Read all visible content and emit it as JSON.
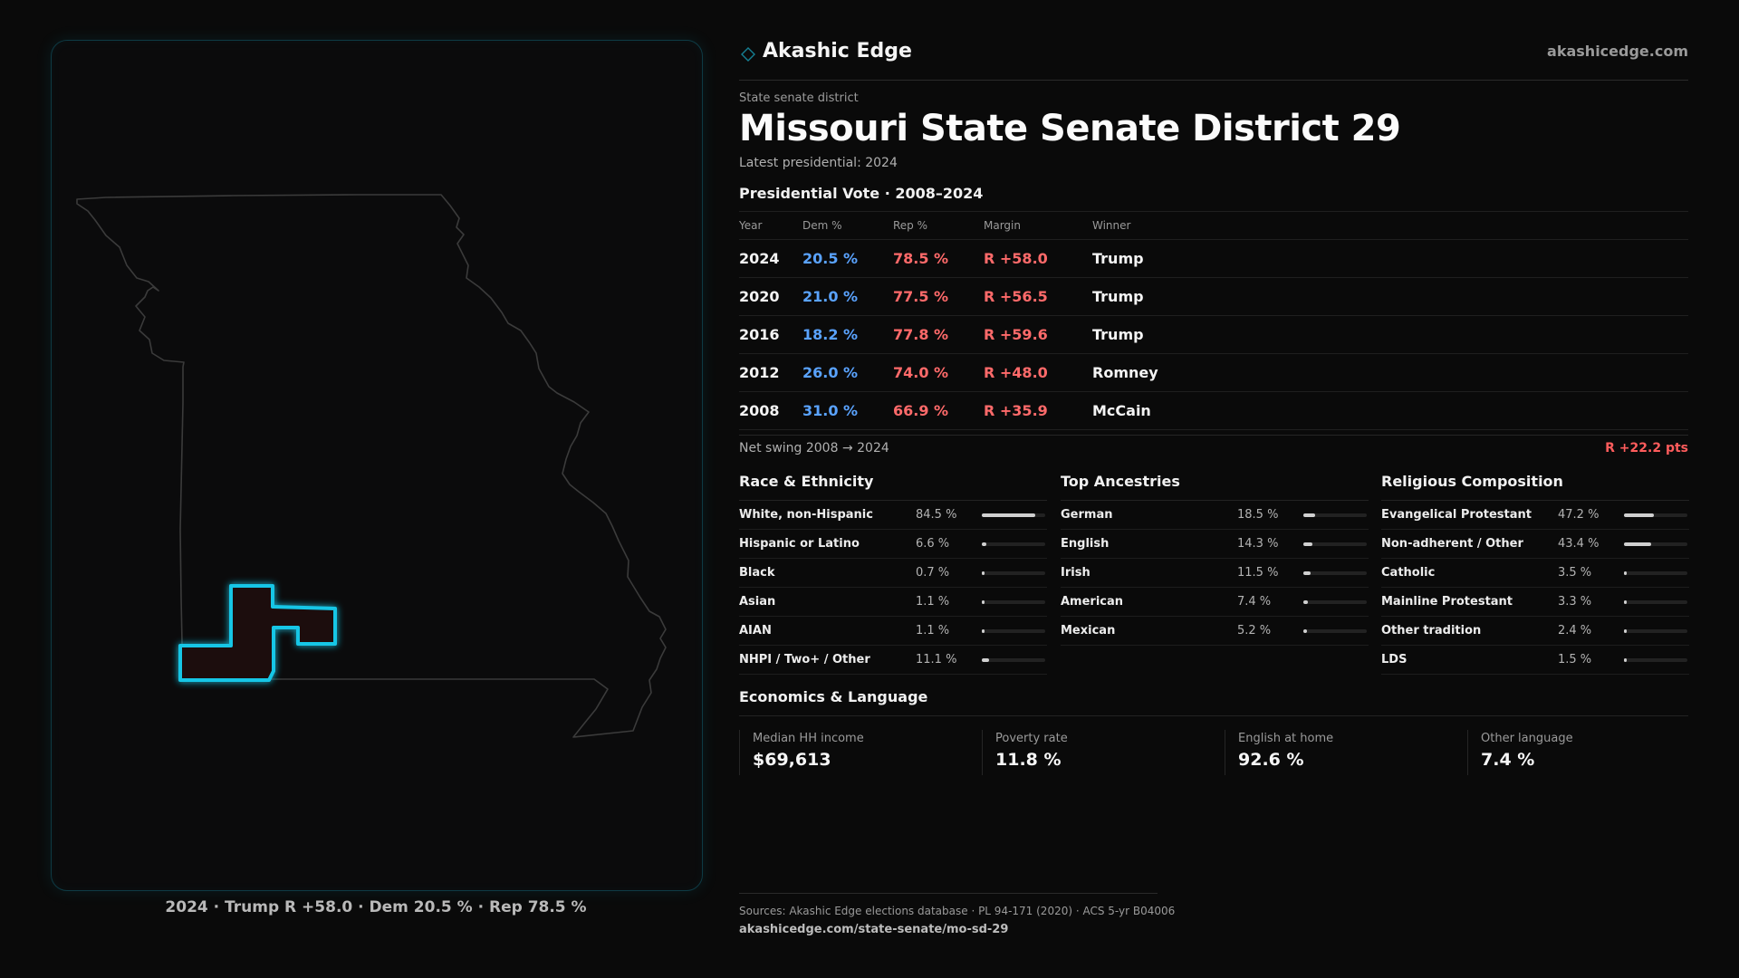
{
  "brand": {
    "name": "Akashic Edge",
    "url": "akashicedge.com"
  },
  "district": {
    "kicker": "State senate district",
    "title": "Missouri State Senate District 29",
    "latest": "Latest presidential: 2024"
  },
  "presidential": {
    "heading": "Presidential Vote · 2008–2024",
    "columns": {
      "year": "Year",
      "dem": "Dem %",
      "rep": "Rep %",
      "margin": "Margin",
      "winner": "Winner"
    },
    "rows": [
      {
        "year": "2024",
        "dem": "20.5 %",
        "rep": "78.5 %",
        "margin": "R +58.0",
        "winner": "Trump"
      },
      {
        "year": "2020",
        "dem": "21.0 %",
        "rep": "77.5 %",
        "margin": "R +56.5",
        "winner": "Trump"
      },
      {
        "year": "2016",
        "dem": "18.2 %",
        "rep": "77.8 %",
        "margin": "R +59.6",
        "winner": "Trump"
      },
      {
        "year": "2012",
        "dem": "26.0 %",
        "rep": "74.0 %",
        "margin": "R +48.0",
        "winner": "Romney"
      },
      {
        "year": "2008",
        "dem": "31.0 %",
        "rep": "66.9 %",
        "margin": "R +35.9",
        "winner": "McCain"
      }
    ],
    "swing_label": "Net swing 2008 → 2024",
    "swing_value": "R +22.2 pts"
  },
  "race": {
    "heading": "Race & Ethnicity",
    "rows": [
      {
        "label": "White, non-Hispanic",
        "pct": "84.5 %",
        "value": 84.5
      },
      {
        "label": "Hispanic or Latino",
        "pct": "6.6 %",
        "value": 6.6
      },
      {
        "label": "Black",
        "pct": "0.7 %",
        "value": 0.7
      },
      {
        "label": "Asian",
        "pct": "1.1 %",
        "value": 1.1
      },
      {
        "label": "AIAN",
        "pct": "1.1 %",
        "value": 1.1
      },
      {
        "label": "NHPI / Two+ / Other",
        "pct": "11.1 %",
        "value": 11.1
      }
    ]
  },
  "ancestry": {
    "heading": "Top Ancestries",
    "rows": [
      {
        "label": "German",
        "pct": "18.5 %",
        "value": 18.5
      },
      {
        "label": "English",
        "pct": "14.3 %",
        "value": 14.3
      },
      {
        "label": "Irish",
        "pct": "11.5 %",
        "value": 11.5
      },
      {
        "label": "American",
        "pct": "7.4 %",
        "value": 7.4
      },
      {
        "label": "Mexican",
        "pct": "5.2 %",
        "value": 5.2
      }
    ]
  },
  "religion": {
    "heading": "Religious Composition",
    "rows": [
      {
        "label": "Evangelical Protestant",
        "pct": "47.2 %",
        "value": 47.2
      },
      {
        "label": "Non-adherent / Other",
        "pct": "43.4 %",
        "value": 43.4
      },
      {
        "label": "Catholic",
        "pct": "3.5 %",
        "value": 3.5
      },
      {
        "label": "Mainline Protestant",
        "pct": "3.3 %",
        "value": 3.3
      },
      {
        "label": "Other tradition",
        "pct": "2.4 %",
        "value": 2.4
      },
      {
        "label": "LDS",
        "pct": "1.5 %",
        "value": 1.5
      }
    ]
  },
  "economics": {
    "heading": "Economics & Language",
    "items": [
      {
        "label": "Median HH income",
        "value": "$69,613"
      },
      {
        "label": "Poverty rate",
        "value": "11.8 %"
      },
      {
        "label": "English at home",
        "value": "92.6 %"
      },
      {
        "label": "Other language",
        "value": "7.4 %"
      }
    ]
  },
  "map_caption": "2024 · Trump R +58.0 · Dem 20.5 % · Rep 78.5 %",
  "sources": {
    "line1": "Sources: Akashic Edge elections database · PL 94-171 (2020) · ACS 5-yr B04006",
    "line2": "akashicedge.com/state-senate/mo-sd-29"
  },
  "colors": {
    "dem": "#5aa3ff",
    "rep": "#ff6a6a",
    "accent": "#19c6e6",
    "bar": "#d0d0d0"
  },
  "icons": {
    "brand": "diamond-logo-icon"
  }
}
